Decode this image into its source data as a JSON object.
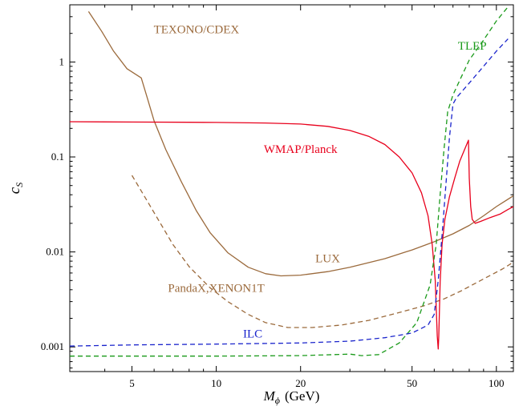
{
  "chart_data": {
    "type": "line",
    "title": "",
    "xlabel": {
      "main": "M",
      "sub": "ϕ",
      "unit": "(GeV)"
    },
    "ylabel": {
      "main": "c",
      "sub": "S"
    },
    "xscale": "log",
    "yscale": "log",
    "xlim": [
      3.0,
      115
    ],
    "ylim": [
      0.00055,
      4.0
    ],
    "grid": false,
    "x_ticks": [
      {
        "value": 5,
        "label": "5"
      },
      {
        "value": 10,
        "label": "10"
      },
      {
        "value": 20,
        "label": "20"
      },
      {
        "value": 50,
        "label": "50"
      },
      {
        "value": 100,
        "label": "100"
      }
    ],
    "y_ticks": [
      {
        "value": 0.001,
        "label": "0.001"
      },
      {
        "value": 0.01,
        "label": "0.01"
      },
      {
        "value": 0.1,
        "label": "0.1"
      },
      {
        "value": 1,
        "label": "1"
      }
    ],
    "series": [
      {
        "name": "TEXONO/CDEX",
        "color": "#9b6a3c",
        "dash": false,
        "points": [
          [
            3.5,
            3.4
          ],
          [
            3.9,
            2.1
          ],
          [
            4.3,
            1.3
          ],
          [
            4.8,
            0.85
          ],
          [
            5.4,
            0.68
          ],
          [
            5.7,
            0.4
          ],
          [
            6.0,
            0.24
          ],
          [
            6.6,
            0.12
          ],
          [
            7.5,
            0.055
          ],
          [
            8.5,
            0.027
          ],
          [
            9.5,
            0.016
          ],
          [
            11,
            0.0098
          ],
          [
            13,
            0.0069
          ],
          [
            15,
            0.0059
          ],
          [
            17,
            0.0056
          ],
          [
            20,
            0.0057
          ],
          [
            25,
            0.0062
          ],
          [
            30,
            0.0069
          ],
          [
            40,
            0.0085
          ],
          [
            50,
            0.0105
          ],
          [
            60,
            0.0128
          ],
          [
            70,
            0.0155
          ],
          [
            80,
            0.019
          ],
          [
            90,
            0.024
          ],
          [
            100,
            0.03
          ],
          [
            115,
            0.039
          ]
        ]
      },
      {
        "name": "LUX",
        "color": "#9b6a3c",
        "dash": false,
        "points": [
          [
            115,
            0.039
          ]
        ]
      },
      {
        "name": "PandaX,XENON1T",
        "color": "#9b6a3c",
        "dash": true,
        "points": [
          [
            5.0,
            0.064
          ],
          [
            5.5,
            0.04
          ],
          [
            6.2,
            0.022
          ],
          [
            7.0,
            0.012
          ],
          [
            8.0,
            0.007
          ],
          [
            9.5,
            0.0042
          ],
          [
            11,
            0.003
          ],
          [
            13,
            0.0022
          ],
          [
            15,
            0.0018
          ],
          [
            18,
            0.0016
          ],
          [
            22,
            0.0016
          ],
          [
            28,
            0.0017
          ],
          [
            35,
            0.0019
          ],
          [
            45,
            0.0023
          ],
          [
            55,
            0.0027
          ],
          [
            65,
            0.0032
          ],
          [
            75,
            0.0039
          ],
          [
            90,
            0.0052
          ],
          [
            105,
            0.0066
          ],
          [
            115,
            0.0078
          ]
        ]
      },
      {
        "name": "WMAP/Planck",
        "color": "#e8001c",
        "dash": false,
        "points": [
          [
            3.0,
            0.235
          ],
          [
            5,
            0.233
          ],
          [
            8,
            0.232
          ],
          [
            10,
            0.231
          ],
          [
            15,
            0.228
          ],
          [
            20,
            0.222
          ],
          [
            25,
            0.21
          ],
          [
            30,
            0.19
          ],
          [
            35,
            0.165
          ],
          [
            40,
            0.135
          ],
          [
            45,
            0.1
          ],
          [
            50,
            0.068
          ],
          [
            54,
            0.042
          ],
          [
            57,
            0.024
          ],
          [
            59,
            0.012
          ],
          [
            60.5,
            0.005
          ],
          [
            61.5,
            0.0013
          ],
          [
            62,
            0.00095
          ],
          [
            62.3,
            0.0013
          ],
          [
            63,
            0.0048
          ],
          [
            64,
            0.012
          ],
          [
            65.5,
            0.022
          ],
          [
            68,
            0.038
          ],
          [
            71,
            0.06
          ],
          [
            74,
            0.09
          ],
          [
            77,
            0.12
          ],
          [
            79.5,
            0.15
          ],
          [
            80,
            0.06
          ],
          [
            81,
            0.03
          ],
          [
            82,
            0.022
          ],
          [
            84,
            0.02
          ],
          [
            88,
            0.021
          ],
          [
            95,
            0.023
          ],
          [
            103,
            0.025
          ],
          [
            110,
            0.028
          ],
          [
            115,
            0.03
          ]
        ]
      },
      {
        "name": "TLEP",
        "color": "#1a9a1a",
        "dash": true,
        "points": [
          [
            3.0,
            0.0008
          ],
          [
            5,
            0.0008
          ],
          [
            10,
            0.0008
          ],
          [
            20,
            0.00081
          ],
          [
            30,
            0.00084
          ],
          [
            33,
            0.00081
          ],
          [
            38,
            0.00083
          ],
          [
            45,
            0.0011
          ],
          [
            52,
            0.0018
          ],
          [
            58,
            0.0045
          ],
          [
            61,
            0.012
          ],
          [
            63,
            0.04
          ],
          [
            65,
            0.12
          ],
          [
            67,
            0.3
          ],
          [
            70,
            0.45
          ],
          [
            75,
            0.7
          ],
          [
            80,
            1.05
          ],
          [
            90,
            1.7
          ],
          [
            100,
            2.7
          ],
          [
            110,
            3.8
          ]
        ]
      },
      {
        "name": "ILC",
        "color": "#1a24cc",
        "dash": true,
        "points": [
          [
            3.0,
            0.00102
          ],
          [
            5,
            0.00105
          ],
          [
            10,
            0.00107
          ],
          [
            20,
            0.0011
          ],
          [
            30,
            0.00115
          ],
          [
            40,
            0.00125
          ],
          [
            50,
            0.0014
          ],
          [
            57,
            0.0017
          ],
          [
            60,
            0.0022
          ],
          [
            62,
            0.005
          ],
          [
            64,
            0.015
          ],
          [
            66,
            0.05
          ],
          [
            68,
            0.16
          ],
          [
            70,
            0.36
          ],
          [
            72,
            0.42
          ],
          [
            80,
            0.6
          ],
          [
            90,
            0.9
          ],
          [
            100,
            1.3
          ],
          [
            110,
            1.75
          ]
        ]
      }
    ],
    "annotations": [
      {
        "text": "TEXONO/CDEX",
        "x": 8.5,
        "y": 2.0,
        "color": "#9b6a3c"
      },
      {
        "text": "TLEP",
        "x": 82,
        "y": 1.35,
        "color": "#1a9a1a"
      },
      {
        "text": "WMAP/Planck",
        "x": 20,
        "y": 0.11,
        "color": "#e8001c"
      },
      {
        "text": "LUX",
        "x": 25,
        "y": 0.0078,
        "color": "#9b6a3c"
      },
      {
        "text": "PandaX,XENON1T",
        "x": 10,
        "y": 0.0038,
        "color": "#9b6a3c"
      },
      {
        "text": "ILC",
        "x": 13.5,
        "y": 0.00125,
        "color": "#1a24cc"
      }
    ]
  }
}
